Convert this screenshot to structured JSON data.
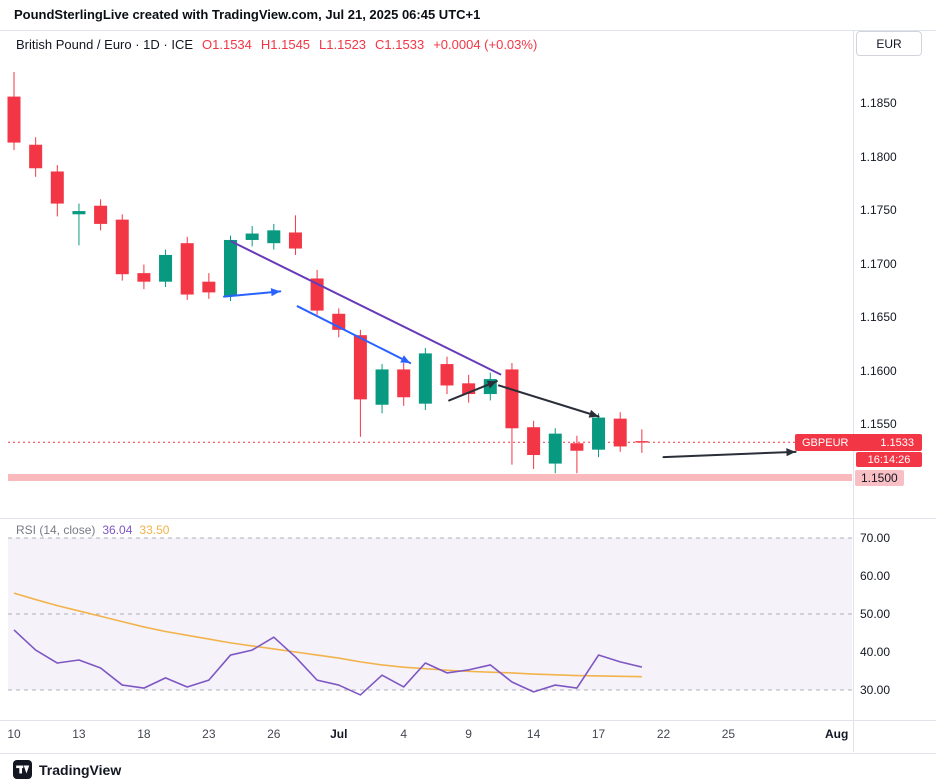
{
  "colors": {
    "up": "#089981",
    "down": "#f23645",
    "trendline": "#673ab7",
    "arrow_blue": "#2962ff",
    "arrow_black": "#2a2e39",
    "rsi_line": "#7e57c2",
    "rsi_ma": "#f3b34c",
    "rsi_band_fill": "rgba(126,87,194,0.08)",
    "rsi_grid": "#787b86",
    "support_band": "#f9b9bd",
    "price_line": "#f23645",
    "badge_bg": "#f23645",
    "support_label_bg": "#f8c0c4"
  },
  "header": {
    "attribution": "PoundSterlingLive created with TradingView.com, Jul 21, 2025 06:45 UTC+1"
  },
  "symbol_bar": {
    "title": "British Pound / Euro · 1D · ICE",
    "open": "O1.1534",
    "high": "H1.1545",
    "low": "L1.1523",
    "close": "C1.1533",
    "change": "+0.0004 (+0.03%)",
    "currency_button": "EUR"
  },
  "price_badge": {
    "symbol": "GBPEUR",
    "price": "1.1533",
    "countdown": "16:14:26"
  },
  "rsi_legend": {
    "title": "RSI (14, close)",
    "value": "36.04",
    "ma_value": "33.50"
  },
  "footer": {
    "brand": "TradingView"
  },
  "chart_data": {
    "type": "candlestick",
    "title": "British Pound / Euro, 1D, ICE",
    "symbol": "GBPEUR",
    "last_price": 1.1533,
    "support_level": 1.15,
    "price_axis_ticks": [
      "1.1850",
      "1.1800",
      "1.1750",
      "1.1700",
      "1.1650",
      "1.1600",
      "1.1550",
      "1.1500"
    ],
    "time_ticks": [
      {
        "label": "10",
        "i": 0,
        "major": false
      },
      {
        "label": "13",
        "i": 3,
        "major": false
      },
      {
        "label": "18",
        "i": 6,
        "major": false
      },
      {
        "label": "23",
        "i": 9,
        "major": false
      },
      {
        "label": "26",
        "i": 12,
        "major": false
      },
      {
        "label": "Jul",
        "i": 15,
        "major": true
      },
      {
        "label": "4",
        "i": 18,
        "major": false
      },
      {
        "label": "9",
        "i": 21,
        "major": false
      },
      {
        "label": "14",
        "i": 24,
        "major": false
      },
      {
        "label": "17",
        "i": 27,
        "major": false
      },
      {
        "label": "22",
        "i": 30,
        "major": false
      },
      {
        "label": "25",
        "i": 33,
        "major": false
      },
      {
        "label": "Aug",
        "i": 38,
        "major": true
      }
    ],
    "candles": [
      {
        "o": 1.1856,
        "h": 1.1879,
        "l": 1.1806,
        "c": 1.1813
      },
      {
        "o": 1.1811,
        "h": 1.1818,
        "l": 1.1781,
        "c": 1.1789
      },
      {
        "o": 1.1786,
        "h": 1.1792,
        "l": 1.1744,
        "c": 1.1756
      },
      {
        "o": 1.1746,
        "h": 1.1756,
        "l": 1.1717,
        "c": 1.1749
      },
      {
        "o": 1.1754,
        "h": 1.176,
        "l": 1.1731,
        "c": 1.1737
      },
      {
        "o": 1.1741,
        "h": 1.1746,
        "l": 1.1684,
        "c": 1.169
      },
      {
        "o": 1.1691,
        "h": 1.1699,
        "l": 1.1676,
        "c": 1.1683
      },
      {
        "o": 1.1683,
        "h": 1.1713,
        "l": 1.1678,
        "c": 1.1708
      },
      {
        "o": 1.1719,
        "h": 1.1725,
        "l": 1.1666,
        "c": 1.1671
      },
      {
        "o": 1.1683,
        "h": 1.1691,
        "l": 1.1667,
        "c": 1.1673
      },
      {
        "o": 1.167,
        "h": 1.1726,
        "l": 1.1665,
        "c": 1.1722
      },
      {
        "o": 1.1722,
        "h": 1.1735,
        "l": 1.1716,
        "c": 1.1728
      },
      {
        "o": 1.1719,
        "h": 1.1737,
        "l": 1.1713,
        "c": 1.1731
      },
      {
        "o": 1.1729,
        "h": 1.1745,
        "l": 1.1708,
        "c": 1.1714
      },
      {
        "o": 1.1686,
        "h": 1.1694,
        "l": 1.1652,
        "c": 1.1656
      },
      {
        "o": 1.1653,
        "h": 1.1658,
        "l": 1.1631,
        "c": 1.1638
      },
      {
        "o": 1.1633,
        "h": 1.1638,
        "l": 1.1538,
        "c": 1.1573
      },
      {
        "o": 1.1568,
        "h": 1.1606,
        "l": 1.156,
        "c": 1.1601
      },
      {
        "o": 1.1601,
        "h": 1.1607,
        "l": 1.1567,
        "c": 1.1575
      },
      {
        "o": 1.1569,
        "h": 1.1621,
        "l": 1.1563,
        "c": 1.1616
      },
      {
        "o": 1.1606,
        "h": 1.1613,
        "l": 1.1578,
        "c": 1.1586
      },
      {
        "o": 1.1588,
        "h": 1.1596,
        "l": 1.157,
        "c": 1.1578
      },
      {
        "o": 1.1578,
        "h": 1.1598,
        "l": 1.1572,
        "c": 1.1592
      },
      {
        "o": 1.1601,
        "h": 1.1607,
        "l": 1.1512,
        "c": 1.1546
      },
      {
        "o": 1.1547,
        "h": 1.1553,
        "l": 1.1508,
        "c": 1.1521
      },
      {
        "o": 1.1513,
        "h": 1.1546,
        "l": 1.1504,
        "c": 1.1541
      },
      {
        "o": 1.1532,
        "h": 1.1539,
        "l": 1.1504,
        "c": 1.1525
      },
      {
        "o": 1.1526,
        "h": 1.156,
        "l": 1.1519,
        "c": 1.1556
      },
      {
        "o": 1.1555,
        "h": 1.1561,
        "l": 1.1524,
        "c": 1.1529
      },
      {
        "o": 1.1534,
        "h": 1.1545,
        "l": 1.1523,
        "c": 1.1533
      }
    ],
    "trendline": {
      "from": {
        "i": 10,
        "p": 1.1721
      },
      "to": {
        "i": 22.5,
        "p": 1.1596
      }
    },
    "arrows": [
      {
        "color": "blue",
        "from": {
          "i": 9.7,
          "p": 1.1669
        },
        "to": {
          "i": 12.3,
          "p": 1.1674
        }
      },
      {
        "color": "blue",
        "from": {
          "i": 13.1,
          "p": 1.166
        },
        "to": {
          "i": 18.3,
          "p": 1.1607
        }
      },
      {
        "color": "black",
        "from": {
          "i": 20.1,
          "p": 1.1572
        },
        "to": {
          "i": 22.3,
          "p": 1.159
        }
      },
      {
        "color": "black",
        "from": {
          "i": 22.4,
          "p": 1.1586
        },
        "to": {
          "i": 27.0,
          "p": 1.1557
        }
      },
      {
        "color": "black",
        "from": {
          "i": 30.0,
          "p": 1.1519
        },
        "to": {
          "i": 36.1,
          "p": 1.1524
        }
      }
    ],
    "rsi_pane": {
      "axis_ticks": [
        "70.00",
        "60.00",
        "50.00",
        "40.00",
        "30.00"
      ],
      "upper": 70,
      "middle": 50,
      "lower": 30,
      "rsi": [
        45.8,
        40.5,
        37.1,
        37.9,
        35.8,
        31.3,
        30.5,
        33.2,
        30.8,
        32.6,
        39.2,
        40.5,
        43.9,
        38.7,
        32.6,
        31.3,
        28.7,
        33.9,
        30.8,
        37.1,
        34.5,
        35.3,
        36.6,
        32.1,
        29.5,
        31.3,
        30.5,
        39.2,
        37.4,
        36.04
      ],
      "rsi_ma": [
        55.5,
        53.8,
        52.2,
        50.8,
        49.4,
        48.0,
        46.6,
        45.4,
        44.4,
        43.4,
        42.4,
        41.6,
        40.8,
        40.0,
        39.2,
        38.4,
        37.4,
        36.6,
        36.0,
        35.6,
        35.2,
        34.9,
        34.7,
        34.5,
        34.2,
        34.0,
        33.8,
        33.7,
        33.6,
        33.5
      ]
    }
  }
}
